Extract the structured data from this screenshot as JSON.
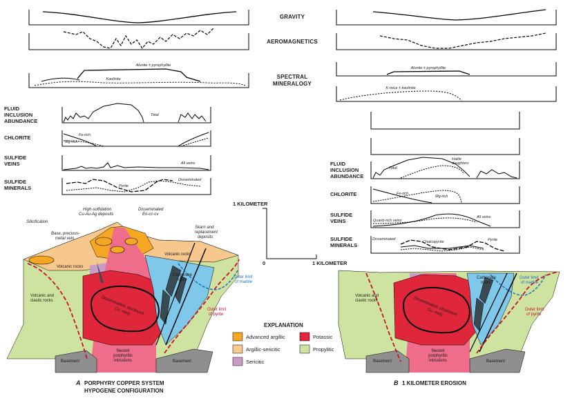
{
  "profiles": {
    "gravity": "GRAVITY",
    "aeromagnetics": "AEROMAGNETICS",
    "spectral_1": "SPECTRAL",
    "spectral_2": "MINERALOGY"
  },
  "left_rows": {
    "fluid_1": "FLUID",
    "fluid_2": "INCLUSION",
    "fluid_3": "ABUNDANCE",
    "chlorite": "CHLORITE",
    "sulfide_veins_1": "SULFIDE",
    "sulfide_veins_2": "VEINS",
    "sulfide_min_1": "SULFIDE",
    "sulfide_min_2": "MINERALS"
  },
  "right_rows": {
    "fluid_1": "FLUID",
    "fluid_2": "INCLUSION",
    "fluid_3": "ABUNDANCE",
    "chlorite": "CHLORITE",
    "sulfide_veins_1": "SULFIDE",
    "sulfide_veins_2": "VEINS",
    "sulfide_min_1": "SULFIDE",
    "sulfide_min_2": "MINERALS"
  },
  "curve_labels": {
    "alunite_left": "Alunite ± pyrophyllite",
    "kaolinite_left": "Kaolinite",
    "alunite_right": "Alunite ± pyrophyllite",
    "kmica_right": "K-mica ± kaolinite",
    "total_left": "Total",
    "fe_rich_left": "Fe-rich",
    "mg_rich_left": "Mg-rich",
    "all_veins_left": "All veins",
    "disseminated_left": "Disseminated",
    "pyrite_left": "Pyrite",
    "total_right": "Total",
    "halite_1": "Halite",
    "halite_2": "daughters",
    "fe_rich_right": "Fe-rich",
    "mg_rich_right": "Mg-rich",
    "quartz_rich": "Quartz-rich veins",
    "all_veins_right": "All veins",
    "disseminated_right": "Disseminated",
    "chalcopyrite": "Chalcopyrite",
    "pyrite_right": "Pyrite"
  },
  "scale": {
    "vertical": "1 KILOMETER",
    "horizontal": "1 KILOMETER",
    "zero": "0"
  },
  "section_a_labels": {
    "high_sulf_1": "High-sulfidation",
    "high_sulf_2": "Cu-Au-Ag deposits",
    "dissem_1": "Disseminated",
    "dissem_2": "En-cc-cv",
    "silicification": "Silicification",
    "base_1": "Base, precious-",
    "base_2": "metal vein",
    "skarn_1": "Skarn and",
    "skarn_2": "replacement",
    "skarn_3": "deposits",
    "volcanic": "Volcanic rocks",
    "volcanic_r": "Volcanic rocks",
    "carbonate_1": "Carbonate",
    "carbonate_2": "rocks",
    "marble_1": "Outer limit",
    "marble_2": "of marble",
    "volc_clastic_1": "Volcanic and",
    "volc_clastic_2": "clastic rocks",
    "stockwork_1": "Disseminated, stockwork",
    "stockwork_2": "Cu, moly",
    "pyrite_limit_1": "Outer limit",
    "pyrite_limit_2": "of pyrite",
    "basement_l": "Basement",
    "basement_r": "Basement",
    "nested_1": "Nested",
    "nested_2": "porphyritic",
    "nested_3": "intrusions"
  },
  "section_b_labels": {
    "carbonate_1": "Carbonate",
    "carbonate_2": "rocks",
    "marble_1": "Outer limit",
    "marble_2": "of marble",
    "volc_clastic_1": "Volcanic and",
    "volc_clastic_2": "clastic rocks",
    "stockwork_1": "Disseminated, stockwork",
    "stockwork_2": "Cu, moly",
    "pyrite_limit_1": "Outer limit",
    "pyrite_limit_2": "of pyrite",
    "basement_l": "Basement",
    "basement_r": "Basement",
    "nested_1": "Nested",
    "nested_2": "porphyritic",
    "nested_3": "intrusions"
  },
  "explanation": {
    "title": "EXPLANATION",
    "items": [
      {
        "label": "Advanced argillic",
        "color": "#f5a623"
      },
      {
        "label": "Argillic-sericitic",
        "color": "#f7c88e"
      },
      {
        "label": "Sericitic",
        "color": "#c99bc6"
      },
      {
        "label": "Potassic",
        "color": "#e0263a"
      },
      {
        "label": "Propylitic",
        "color": "#cfe3a0"
      }
    ]
  },
  "titles": {
    "a_letter": "A",
    "a_line1": "PORPHYRY COPPER SYSTEM",
    "a_line2": "HYPOGENE CONFIGURATION",
    "b_letter": "B",
    "b_line1": "1 KILOMETER EROSION"
  },
  "colors": {
    "advanced_argillic": "#f5a623",
    "argillic_sericitic": "#f7c88e",
    "sericitic": "#c99bc6",
    "potassic": "#e0263a",
    "potassic_pink": "#ee6d8a",
    "propylitic": "#cfe3a0",
    "carbonate": "#7fc8ea",
    "basement": "#8f8f8f",
    "pyrite_limit": "#c8102e",
    "marble_limit": "#1e6fb5"
  }
}
